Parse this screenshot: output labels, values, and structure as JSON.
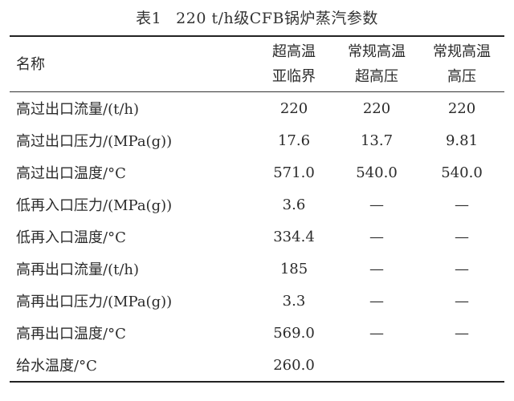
{
  "table": {
    "caption_label": "表1",
    "caption_title": "220 t/h级CFB锅炉蒸汽参数",
    "header": {
      "name": "名称",
      "col1": [
        "超高温",
        "亚临界"
      ],
      "col2": [
        "常规高温",
        "超高压"
      ],
      "col3": [
        "常规高温",
        "高压"
      ]
    },
    "rows": [
      {
        "name": "高过出口流量/(t/h)",
        "v1": "220",
        "v2": "220",
        "v3": "220"
      },
      {
        "name": "高过出口压力/(MPa(g))",
        "v1": "17.6",
        "v2": "13.7",
        "v3": "9.81"
      },
      {
        "name": "高过出口温度/°C",
        "v1": "571.0",
        "v2": "540.0",
        "v3": "540.0"
      },
      {
        "name": "低再入口压力/(MPa(g))",
        "v1": "3.6",
        "v2": "—",
        "v3": "—"
      },
      {
        "name": "低再入口温度/°C",
        "v1": "334.4",
        "v2": "—",
        "v3": "—"
      },
      {
        "name": "高再出口流量/(t/h)",
        "v1": "185",
        "v2": "—",
        "v3": "—"
      },
      {
        "name": "高再出口压力/(MPa(g))",
        "v1": "3.3",
        "v2": "—",
        "v3": "—"
      },
      {
        "name": "高再出口温度/°C",
        "v1": "569.0",
        "v2": "—",
        "v3": "—"
      },
      {
        "name": "给水温度/°C",
        "v1": "260.0",
        "v2": "",
        "v3": ""
      }
    ]
  }
}
